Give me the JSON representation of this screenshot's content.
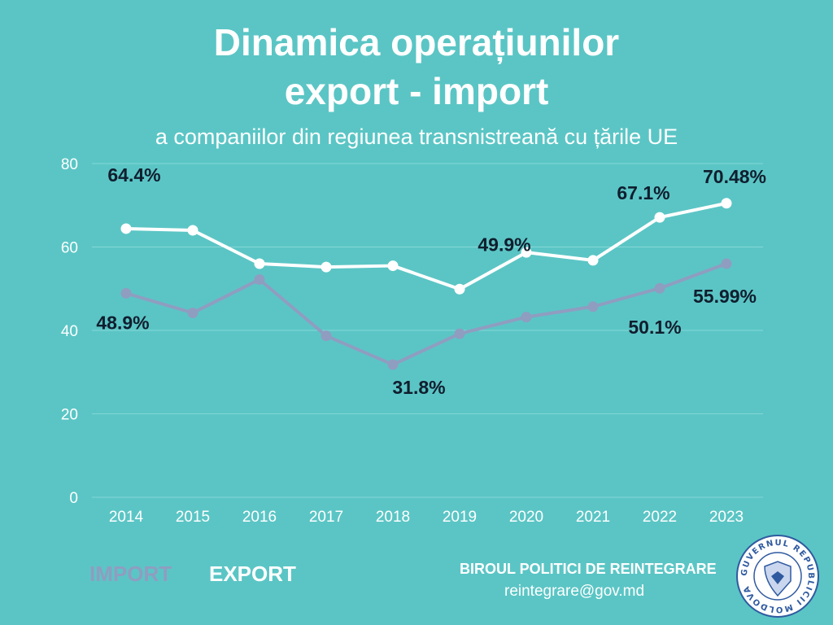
{
  "header": {
    "title_line1": "Dinamica operațiunilor",
    "title_line2": "export - import",
    "subtitle": "a companiilor din regiunea transnistreană cu țările UE"
  },
  "chart_data": {
    "type": "line",
    "categories": [
      "2014",
      "2015",
      "2016",
      "2017",
      "2018",
      "2019",
      "2020",
      "2021",
      "2022",
      "2023"
    ],
    "ylim": [
      0,
      80
    ],
    "yticks": [
      0,
      20,
      40,
      60,
      80
    ],
    "grid": true,
    "series": [
      {
        "name": "EXPORT",
        "color": "#ffffff",
        "values": [
          64.4,
          64.0,
          56.0,
          55.2,
          55.5,
          49.9,
          58.7,
          56.8,
          67.1,
          70.48
        ],
        "labels": [
          {
            "index": 0,
            "text": "64.4%"
          },
          {
            "index": 5,
            "text": "49.9%"
          },
          {
            "index": 8,
            "text": "67.1%"
          },
          {
            "index": 9,
            "text": "70.48%"
          }
        ]
      },
      {
        "name": "IMPORT",
        "color": "#8f9dc0",
        "values": [
          48.9,
          44.2,
          52.2,
          38.7,
          31.8,
          39.2,
          43.2,
          45.7,
          50.1,
          55.99
        ],
        "labels": [
          {
            "index": 0,
            "text": "48.9%"
          },
          {
            "index": 4,
            "text": "31.8%"
          },
          {
            "index": 8,
            "text": "50.1%"
          },
          {
            "index": 9,
            "text": "55.99%"
          }
        ]
      }
    ]
  },
  "legend": {
    "import_label": "IMPORT",
    "export_label": "EXPORT"
  },
  "footer": {
    "org": "BIROUL POLITICI DE REINTEGRARE",
    "email": "reintegrare@gov.md",
    "emblem_icon": "government-emblem-icon",
    "emblem_text": "GUVERNUL REPUBLICII MOLDOVA"
  },
  "colors": {
    "background": "#5bc5c5",
    "export": "#ffffff",
    "import": "#8f9dc0",
    "data_label": "#0f1e2e",
    "grid": "#86d6d6"
  }
}
